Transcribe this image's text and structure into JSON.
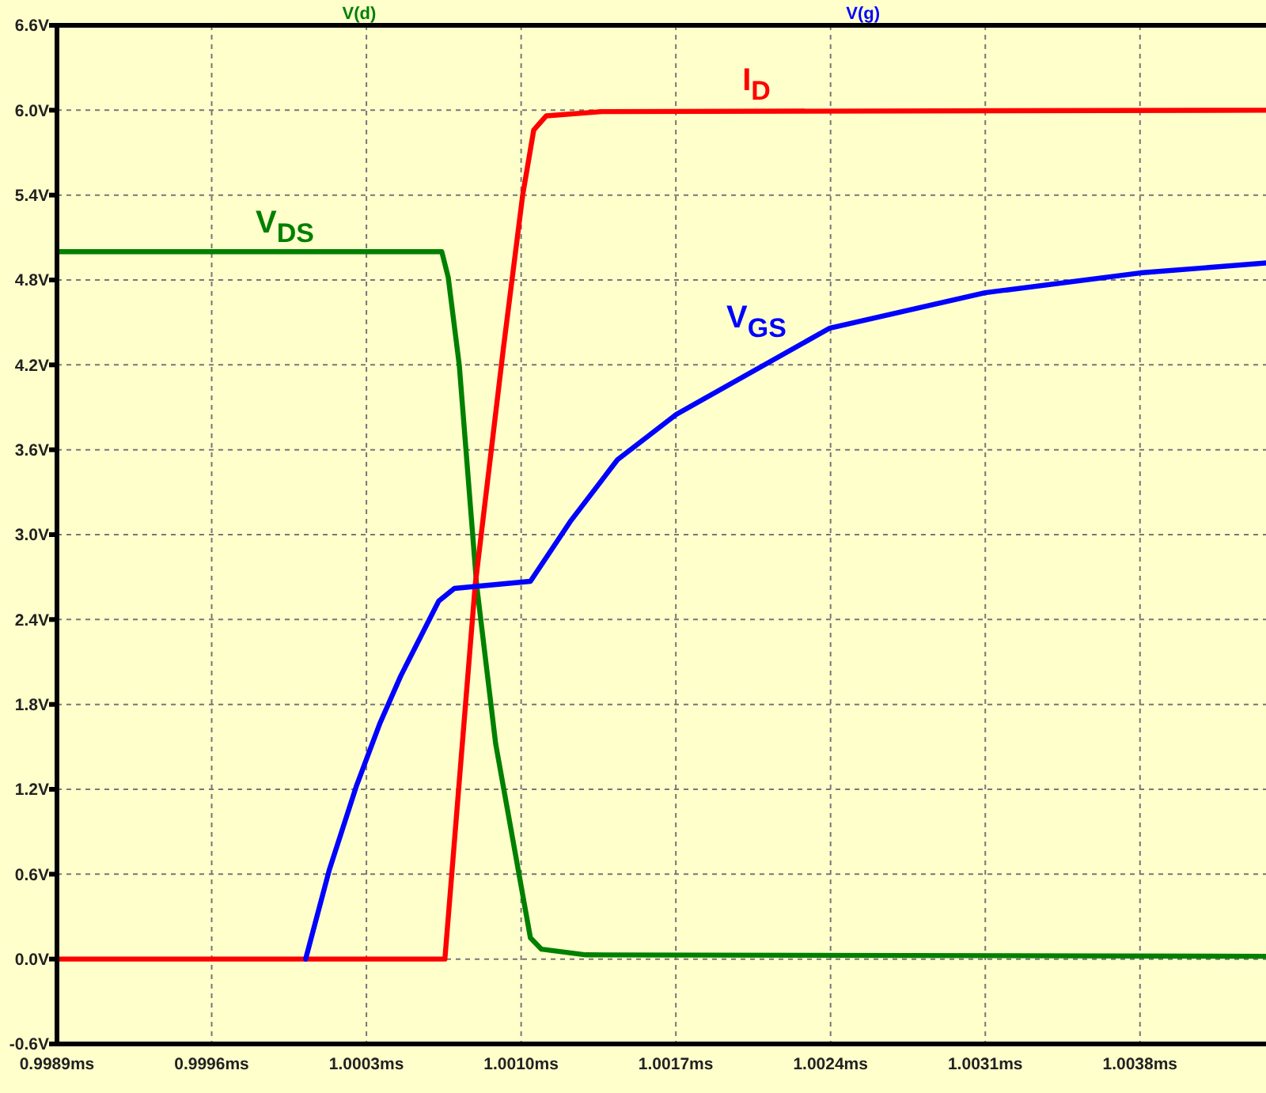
{
  "chart_data": {
    "type": "line",
    "xlim": [
      0.9989,
      1.00437
    ],
    "ylim": [
      -0.6,
      6.6
    ],
    "xticks": [
      {
        "value": 0.9989,
        "label": "0.9989ms"
      },
      {
        "value": 0.9996,
        "label": "0.9996ms"
      },
      {
        "value": 1.0003,
        "label": "1.0003ms"
      },
      {
        "value": 1.001,
        "label": "1.0010ms"
      },
      {
        "value": 1.0017,
        "label": "1.0017ms"
      },
      {
        "value": 1.0024,
        "label": "1.0024ms"
      },
      {
        "value": 1.0031,
        "label": "1.0031ms"
      },
      {
        "value": 1.0038,
        "label": "1.0038ms"
      }
    ],
    "yticks": [
      {
        "value": -0.6,
        "label": "-0.6V"
      },
      {
        "value": 0,
        "label": "0.0V"
      },
      {
        "value": 0.6,
        "label": "0.6V"
      },
      {
        "value": 1.2,
        "label": "1.2V"
      },
      {
        "value": 1.8,
        "label": "1.8V"
      },
      {
        "value": 2.4,
        "label": "2.4V"
      },
      {
        "value": 3,
        "label": "3.0V"
      },
      {
        "value": 3.6,
        "label": "3.6V"
      },
      {
        "value": 4.2,
        "label": "4.2V"
      },
      {
        "value": 4.8,
        "label": "4.8V"
      },
      {
        "value": 5.4,
        "label": "5.4V"
      },
      {
        "value": 6,
        "label": "6.0V"
      },
      {
        "value": 6.6,
        "label": "6.6V"
      }
    ],
    "grid": true,
    "legend": "top",
    "line_style": "solid",
    "series": [
      {
        "name": "V(d)",
        "color": "#008000",
        "x": [
          0.9989,
          1.000641,
          1.00067,
          1.00072,
          1.000799,
          1.000885,
          1.001042,
          1.001092,
          1.001293,
          1.00437
        ],
        "values": [
          5.0,
          5.0,
          4.82,
          4.2,
          2.64,
          1.52,
          0.15,
          0.07,
          0.03,
          0.02
        ]
      },
      {
        "color": "#ff0000",
        "x": [
          0.9989,
          1.000655,
          1.000792,
          1.00092,
          1.001007,
          1.001057,
          1.001114,
          1.001365,
          1.00437
        ],
        "values": [
          0,
          0,
          2.64,
          4.32,
          5.4,
          5.86,
          5.96,
          5.99,
          6.0
        ]
      },
      {
        "name": "V(g)",
        "color": "#0000ff",
        "x": [
          1.000025,
          1.000132,
          1.000254,
          1.000362,
          1.000455,
          1.000627,
          1.000698,
          1.001042,
          1.001221,
          1.001436,
          1.001702,
          1.002397,
          1.003099,
          1.003801,
          1.00437
        ],
        "values": [
          0,
          0.63,
          1.22,
          1.67,
          2.0,
          2.53,
          2.62,
          2.67,
          3.09,
          3.53,
          3.85,
          4.46,
          4.71,
          4.85,
          4.92
        ]
      }
    ],
    "annotations": [
      "V$_{DS}$",
      "I$_{D}$",
      "V$_{GS}$"
    ]
  }
}
